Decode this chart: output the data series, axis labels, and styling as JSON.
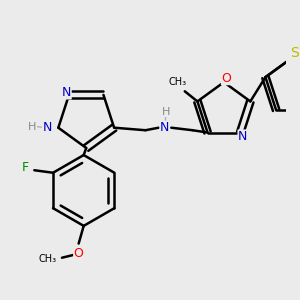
{
  "bg_color": "#ebebeb",
  "bond_color": "#000000",
  "bond_width": 1.8,
  "font_size": 9,
  "fig_size": [
    3.0,
    3.0
  ],
  "dpi": 100,
  "colors": {
    "N": "#0000cc",
    "O": "#ff0000",
    "F": "#008800",
    "S": "#bbbb00",
    "C": "#000000",
    "H": "#888888"
  }
}
